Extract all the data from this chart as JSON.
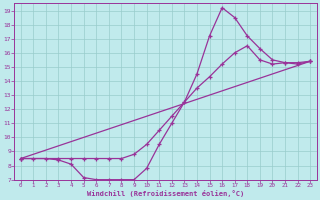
{
  "title": "",
  "xlabel": "Windchill (Refroidissement éolien,°C)",
  "bg_color": "#c0eaec",
  "line_color": "#993399",
  "grid_color": "#99cccc",
  "xlim": [
    -0.5,
    23.5
  ],
  "ylim": [
    7,
    19.5
  ],
  "xticks": [
    0,
    1,
    2,
    3,
    4,
    5,
    6,
    7,
    8,
    9,
    10,
    11,
    12,
    13,
    14,
    15,
    16,
    17,
    18,
    19,
    20,
    21,
    22,
    23
  ],
  "yticks": [
    7,
    8,
    9,
    10,
    11,
    12,
    13,
    14,
    15,
    16,
    17,
    18,
    19
  ],
  "line1_x": [
    0,
    1,
    2,
    3,
    4,
    5,
    6,
    7,
    8,
    9,
    10,
    11,
    12,
    13,
    14,
    15,
    16,
    17,
    18,
    19,
    20,
    21,
    22,
    23
  ],
  "line1_y": [
    8.5,
    8.5,
    8.5,
    8.4,
    8.1,
    7.15,
    7.0,
    7.0,
    7.0,
    7.0,
    7.8,
    9.5,
    11.0,
    12.5,
    14.5,
    17.2,
    19.2,
    18.5,
    17.2,
    16.3,
    15.5,
    15.3,
    15.2,
    15.4
  ],
  "line2_x": [
    0,
    3,
    4,
    5,
    6,
    7,
    8,
    9,
    10,
    11,
    12,
    13,
    14,
    15,
    16,
    17,
    18,
    19,
    20,
    21,
    22,
    23
  ],
  "line2_y": [
    8.5,
    8.5,
    8.5,
    8.5,
    8.5,
    8.5,
    8.5,
    8.8,
    9.5,
    10.5,
    11.5,
    12.5,
    13.5,
    14.3,
    15.2,
    16.0,
    16.5,
    15.5,
    15.2,
    15.3,
    15.3,
    15.4
  ],
  "line3_x": [
    0,
    23
  ],
  "line3_y": [
    8.5,
    15.4
  ]
}
